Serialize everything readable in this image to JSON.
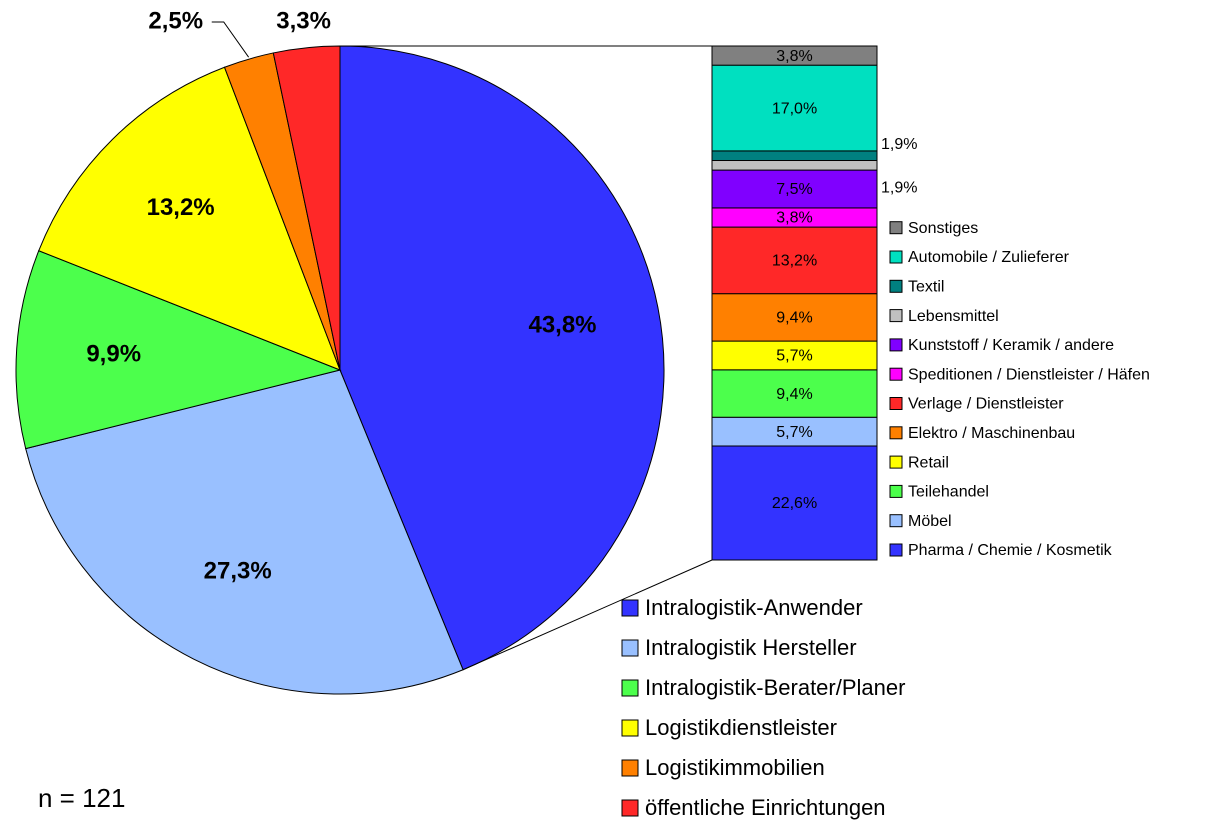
{
  "chart_data": [
    {
      "type": "pie",
      "categories": [
        "Intralogistik-Anwender",
        "Intralogistik Hersteller",
        "Intralogistik-Berater/Planer",
        "Logistikdienstleister",
        "Logistikimmobilien",
        "öffentliche Einrichtungen"
      ],
      "values": [
        43.8,
        27.3,
        9.9,
        13.2,
        2.5,
        3.3
      ],
      "value_labels": [
        "43,8%",
        "27,3%",
        "9,9%",
        "13,2%",
        "2,5%",
        "3,3%"
      ],
      "colors": [
        "#3333ff",
        "#99c0ff",
        "#4cff4c",
        "#ffff00",
        "#ff8000",
        "#ff2828"
      ],
      "note": "n = 121"
    },
    {
      "type": "stacked-bar",
      "categories": [
        "Pharma / Chemie / Kosmetik",
        "Möbel",
        "Teilehandel",
        "Retail",
        "Elektro / Maschinenbau",
        "Verlage / Dienstleister",
        "Speditionen / Dienstleister / Häfen",
        "Kunststoff / Keramik / andere",
        "Lebensmittel",
        "Textil",
        "Automobile / Zulieferer",
        "Sonstiges"
      ],
      "values": [
        22.6,
        5.7,
        9.4,
        5.7,
        9.4,
        13.2,
        3.8,
        7.5,
        1.9,
        1.9,
        17.0,
        3.8
      ],
      "value_labels": [
        "22,6%",
        "5,7%",
        "9,4%",
        "5,7%",
        "9,4%",
        "13,2%",
        "3,8%",
        "7,5%",
        "1,9%",
        "1,9%",
        "17,0%",
        "3,8%"
      ],
      "colors": [
        "#3333ff",
        "#99c0ff",
        "#4cff4c",
        "#ffff00",
        "#ff8000",
        "#ff2828",
        "#ff00ff",
        "#8000ff",
        "#c0c0c0",
        "#008080",
        "#00e0c0",
        "#808080"
      ]
    }
  ]
}
